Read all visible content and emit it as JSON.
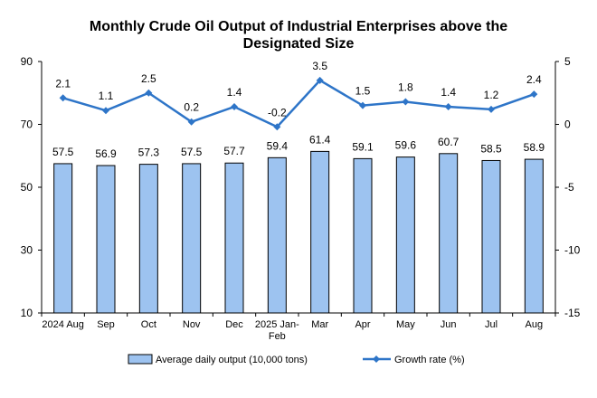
{
  "chart_data": {
    "type": "bar",
    "title_line1": "Monthly Crude Oil Output of Industrial Enterprises above the",
    "title_line2": "Designated Size",
    "categories": [
      [
        "2024 Aug"
      ],
      [
        "Sep"
      ],
      [
        "Oct"
      ],
      [
        "Nov"
      ],
      [
        "Dec"
      ],
      [
        "2025 Jan-",
        "Feb"
      ],
      [
        "Mar"
      ],
      [
        "Apr"
      ],
      [
        "May"
      ],
      [
        "Jun"
      ],
      [
        "Jul"
      ],
      [
        "Aug"
      ]
    ],
    "series": [
      {
        "name": "Average daily output (10,000 tons)",
        "type": "bar",
        "axis": "left",
        "color": "#9DC3F0",
        "values": [
          57.5,
          56.9,
          57.3,
          57.5,
          57.7,
          59.4,
          61.4,
          59.1,
          59.6,
          60.7,
          58.5,
          58.9
        ]
      },
      {
        "name": "Growth rate (%)",
        "type": "line",
        "axis": "right",
        "color": "#2E75C8",
        "values": [
          2.1,
          1.1,
          2.5,
          0.2,
          1.4,
          -0.2,
          3.5,
          1.5,
          1.8,
          1.4,
          1.2,
          2.4
        ]
      }
    ],
    "y_left": {
      "min": 10,
      "max": 90,
      "ticks": [
        10,
        30,
        50,
        70,
        90
      ]
    },
    "y_right": {
      "min": -15,
      "max": 5,
      "ticks": [
        -15,
        -10,
        -5,
        0,
        5
      ]
    },
    "legend_position": "bottom",
    "grid": false
  }
}
